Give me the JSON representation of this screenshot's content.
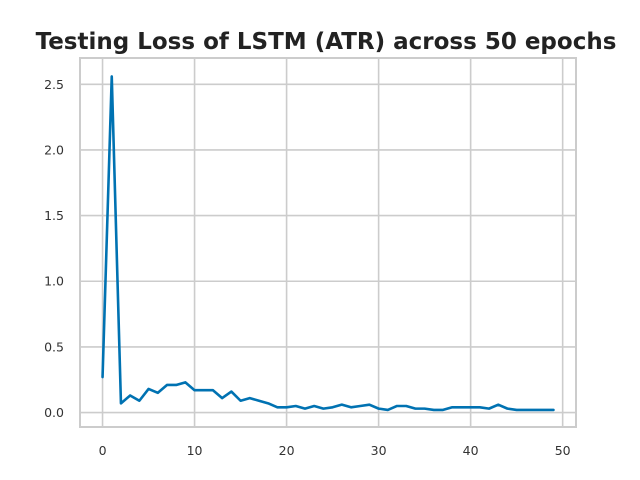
{
  "chart_data": {
    "type": "line",
    "title": "Testing Loss of LSTM (ATR) across 50 epochs",
    "xlabel": "",
    "ylabel": "",
    "xlim": [
      -2.45,
      51.45
    ],
    "ylim": [
      -0.11,
      2.7
    ],
    "x_ticks": [
      0,
      10,
      20,
      30,
      40,
      50
    ],
    "y_ticks": [
      0.0,
      0.5,
      1.0,
      1.5,
      2.0,
      2.5
    ],
    "y_tick_labels": [
      "0.0",
      "0.5",
      "1.0",
      "1.5",
      "2.0",
      "2.5"
    ],
    "grid": true,
    "legend": "none",
    "colors": {
      "series": "#0072b2",
      "grid": "#cccccc",
      "frame": "#cccccc",
      "text": "#222222"
    },
    "series": [
      {
        "x": [
          0,
          1,
          2,
          3,
          4,
          5,
          6,
          7,
          8,
          9,
          10,
          11,
          12,
          13,
          14,
          15,
          16,
          17,
          18,
          19,
          20,
          21,
          22,
          23,
          24,
          25,
          26,
          27,
          28,
          29,
          30,
          31,
          32,
          33,
          34,
          35,
          36,
          37,
          38,
          39,
          40,
          41,
          42,
          43,
          44,
          45,
          46,
          47,
          48,
          49
        ],
        "values": [
          0.27,
          2.56,
          0.07,
          0.13,
          0.09,
          0.18,
          0.15,
          0.21,
          0.21,
          0.23,
          0.17,
          0.17,
          0.17,
          0.11,
          0.16,
          0.09,
          0.11,
          0.09,
          0.07,
          0.04,
          0.04,
          0.05,
          0.03,
          0.05,
          0.03,
          0.04,
          0.06,
          0.04,
          0.05,
          0.06,
          0.03,
          0.02,
          0.05,
          0.05,
          0.03,
          0.03,
          0.02,
          0.02,
          0.04,
          0.04,
          0.04,
          0.04,
          0.03,
          0.06,
          0.03,
          0.02,
          0.02,
          0.02,
          0.02,
          0.02
        ]
      }
    ]
  }
}
